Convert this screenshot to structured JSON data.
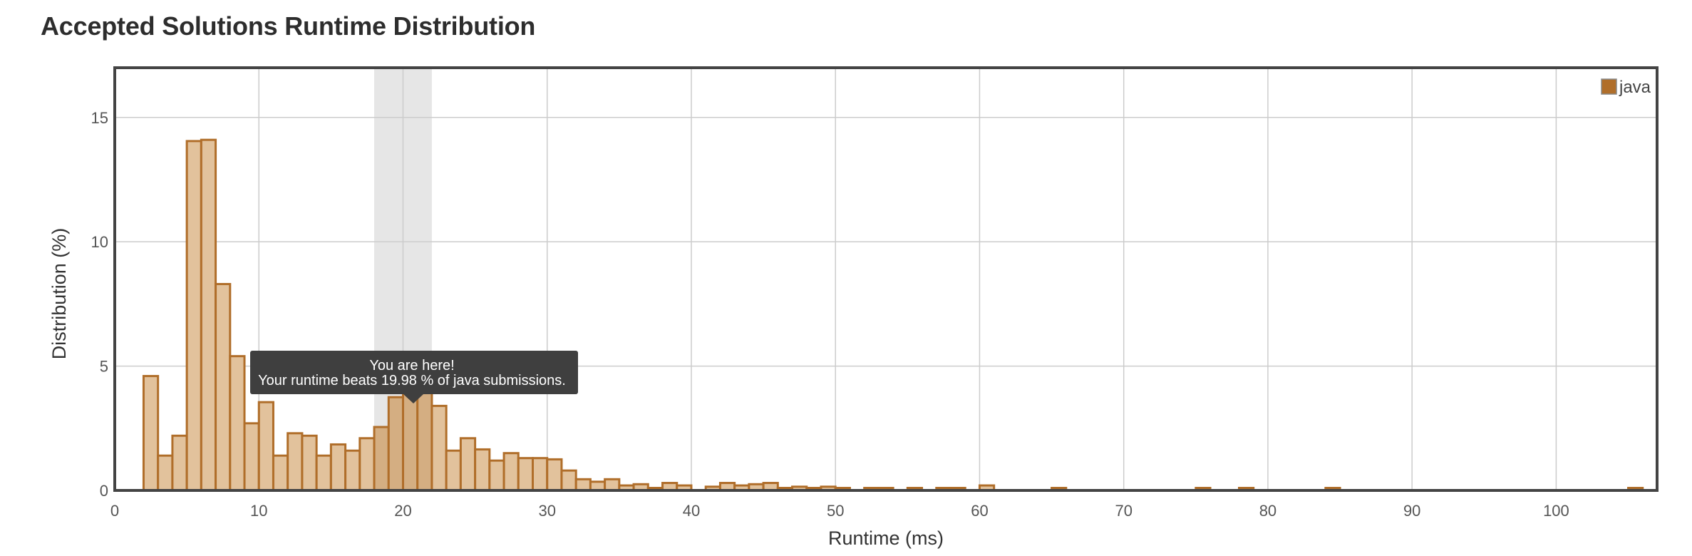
{
  "title": "Accepted Solutions Runtime Distribution",
  "legend": {
    "label": "java",
    "placement": "top-right"
  },
  "tooltip": {
    "line1": "You are here!",
    "line2": "Your runtime beats 19.98 % of java submissions."
  },
  "colors": {
    "bar_fill": "#e2c29c",
    "bar_highlight_fill": "#d4ae82",
    "bar_stroke": "#b06e2a",
    "legend_swatch": "#b06e2a",
    "band": "#e6e6e6",
    "grid": "#cccccc",
    "frame": "#444444",
    "tooltip_bg": "#3f3f3f"
  },
  "chart_data": {
    "type": "bar",
    "title": "Accepted Solutions Runtime Distribution",
    "xlabel": "Runtime (ms)",
    "ylabel": "Distribution (%)",
    "xlim": [
      0,
      107
    ],
    "ylim": [
      0,
      17
    ],
    "xticks": [
      0,
      10,
      20,
      30,
      40,
      50,
      60,
      70,
      80,
      90,
      100
    ],
    "yticks": [
      0,
      5,
      10,
      15
    ],
    "grid": true,
    "bin_width": 1,
    "highlight_range": [
      18,
      22
    ],
    "series": [
      {
        "name": "java",
        "x": [
          2,
          3,
          4,
          5,
          6,
          7,
          8,
          9,
          10,
          11,
          12,
          13,
          14,
          15,
          16,
          17,
          18,
          19,
          20,
          21,
          22,
          23,
          24,
          25,
          26,
          27,
          28,
          29,
          30,
          31,
          32,
          33,
          34,
          35,
          36,
          37,
          38,
          39,
          41,
          42,
          43,
          44,
          45,
          46,
          47,
          48,
          49,
          50,
          52,
          53,
          55,
          57,
          58,
          60,
          65,
          75,
          78,
          84,
          105
        ],
        "values": [
          4.6,
          1.4,
          2.2,
          14.05,
          14.1,
          8.3,
          5.4,
          2.7,
          3.55,
          1.4,
          2.3,
          2.2,
          1.4,
          1.85,
          1.6,
          2.1,
          2.55,
          3.75,
          4.4,
          4.4,
          3.4,
          1.6,
          2.1,
          1.65,
          1.2,
          1.5,
          1.3,
          1.3,
          1.25,
          0.8,
          0.45,
          0.35,
          0.45,
          0.2,
          0.25,
          0.1,
          0.3,
          0.2,
          0.15,
          0.3,
          0.2,
          0.25,
          0.3,
          0.1,
          0.15,
          0.1,
          0.15,
          0.1,
          0.1,
          0.1,
          0.1,
          0.1,
          0.1,
          0.2,
          0.1,
          0.1,
          0.1,
          0.1,
          0.1
        ]
      }
    ]
  }
}
